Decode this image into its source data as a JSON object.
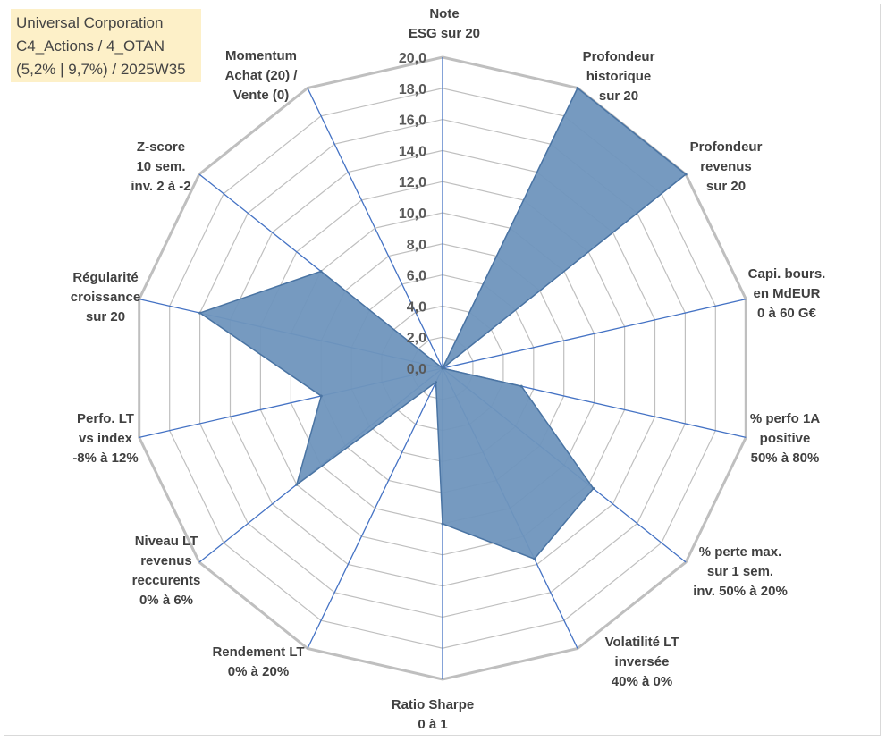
{
  "info_box": {
    "line1": "Universal Corporation",
    "line2": "C4_Actions / 4_OTAN",
    "line3": "(5,2% | 9,7%) / 2025W35"
  },
  "chart_data": {
    "type": "radar",
    "title": "",
    "rmin": 0,
    "rmax": 20,
    "tick_step": 2,
    "ticks": [
      "0,0",
      "2,0",
      "4,0",
      "6,0",
      "8,0",
      "10,0",
      "12,0",
      "14,0",
      "16,0",
      "18,0",
      "20,0"
    ],
    "grid": true,
    "categories": [
      [
        "Note",
        "ESG sur 20"
      ],
      [
        "Profondeur",
        "historique",
        "sur 20"
      ],
      [
        "Profondeur",
        "revenus",
        "sur 20"
      ],
      [
        "Capi. bours.",
        "en MdEUR",
        "0 à 60 G€"
      ],
      [
        "% perfo 1A",
        "positive",
        "50% à 80%"
      ],
      [
        "% perte max.",
        "sur 1 sem.",
        "inv. 50% à 20%"
      ],
      [
        "Volatilité LT",
        "inversée",
        "40% à 0%"
      ],
      [
        "Ratio Sharpe",
        "0 à 1"
      ],
      [
        "Rendement LT",
        "0% à 20%"
      ],
      [
        "Niveau LT",
        "revenus",
        "reccurents",
        "0% à 6%"
      ],
      [
        "Perfo. LT",
        "vs index",
        "-8% à 12%"
      ],
      [
        "Régularité",
        "croissance",
        "sur 20"
      ],
      [
        "Z-score",
        "10 sem.",
        "inv. 2 à -2"
      ],
      [
        "Momentum",
        "Achat (20) /",
        "Vente (0)"
      ]
    ],
    "series": [
      {
        "values": [
          0,
          20,
          20,
          0,
          5.2,
          12.4,
          13.6,
          10,
          1,
          12,
          8,
          16,
          10,
          0
        ],
        "color": "#4f7cac"
      }
    ],
    "colors": {
      "fill": "#6f95bd",
      "stroke": "#4a74a3",
      "axis": "#4472c4",
      "grid": "#bfbfbf"
    }
  }
}
